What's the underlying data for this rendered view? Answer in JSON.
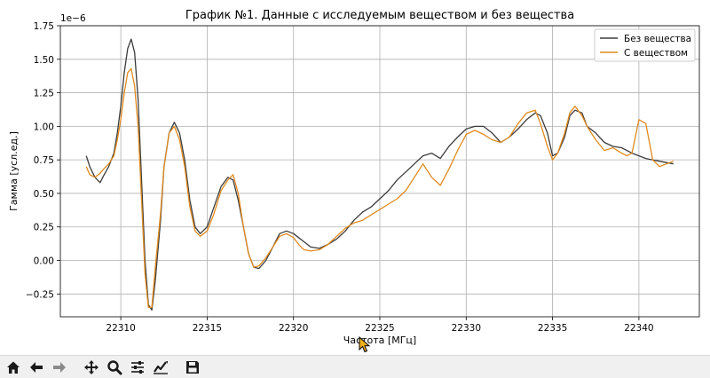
{
  "chart_data": {
    "type": "line",
    "title": "График №1. Данные с исследуемым веществом и без вещества",
    "xlabel": "Частота [МГц]",
    "ylabel": "Гамма [усл.ед.]",
    "offset_label": "1e−6",
    "xlim": [
      22306.5,
      22343.5
    ],
    "ylim": [
      -0.42,
      1.75
    ],
    "xticks": [
      22310,
      22315,
      22320,
      22325,
      22330,
      22335,
      22340
    ],
    "xtick_labels": [
      "22310",
      "22315",
      "22320",
      "22325",
      "22330",
      "22335",
      "22340"
    ],
    "yticks": [
      -0.25,
      0.0,
      0.25,
      0.5,
      0.75,
      1.0,
      1.25,
      1.5,
      1.75
    ],
    "ytick_labels": [
      "−0.25",
      "0.00",
      "0.25",
      "0.50",
      "0.75",
      "1.00",
      "1.25",
      "1.50",
      "1.75"
    ],
    "grid": true,
    "legend_position": "top-right",
    "series": [
      {
        "name": "Без вещества",
        "color": "#3c3c3c",
        "x": [
          22308.0,
          22308.2,
          22308.5,
          22308.8,
          22309.0,
          22309.3,
          22309.6,
          22309.8,
          22310.0,
          22310.2,
          22310.4,
          22310.6,
          22310.8,
          22311.0,
          22311.2,
          22311.4,
          22311.6,
          22311.8,
          22312.0,
          22312.3,
          22312.5,
          22312.8,
          22313.1,
          22313.4,
          22313.7,
          22314.0,
          22314.3,
          22314.6,
          22315.0,
          22315.4,
          22315.8,
          22316.2,
          22316.5,
          22316.8,
          22317.1,
          22317.4,
          22317.7,
          22318.0,
          22318.4,
          22318.8,
          22319.2,
          22319.6,
          22320.0,
          22320.3,
          22320.6,
          22321.0,
          22321.5,
          22322.0,
          22322.5,
          22323.0,
          22323.5,
          22324.0,
          22324.5,
          22325.0,
          22325.5,
          22326.0,
          22326.5,
          22327.0,
          22327.5,
          22328.0,
          22328.5,
          22329.0,
          22329.5,
          22330.0,
          22330.5,
          22331.0,
          22331.5,
          22332.0,
          22332.5,
          22333.0,
          22333.5,
          22334.0,
          22334.3,
          22334.7,
          22335.0,
          22335.3,
          22335.7,
          22336.0,
          22336.3,
          22336.7,
          22337.0,
          22337.5,
          22338.0,
          22338.5,
          22339.0,
          22339.3,
          22339.6,
          22340.0,
          22340.4,
          22340.8,
          22341.2,
          22341.6,
          22342.0
        ],
        "y": [
          0.78,
          0.7,
          0.62,
          0.58,
          0.63,
          0.7,
          0.8,
          0.95,
          1.15,
          1.4,
          1.58,
          1.65,
          1.55,
          1.2,
          0.6,
          0.0,
          -0.33,
          -0.37,
          -0.15,
          0.3,
          0.7,
          0.95,
          1.03,
          0.95,
          0.75,
          0.45,
          0.25,
          0.2,
          0.25,
          0.4,
          0.55,
          0.62,
          0.6,
          0.45,
          0.25,
          0.05,
          -0.05,
          -0.06,
          0.0,
          0.1,
          0.2,
          0.22,
          0.2,
          0.17,
          0.14,
          0.1,
          0.09,
          0.12,
          0.16,
          0.22,
          0.3,
          0.36,
          0.4,
          0.46,
          0.52,
          0.6,
          0.66,
          0.72,
          0.78,
          0.8,
          0.76,
          0.85,
          0.92,
          0.98,
          1.0,
          1.0,
          0.95,
          0.88,
          0.92,
          0.98,
          1.05,
          1.1,
          1.08,
          0.95,
          0.78,
          0.8,
          0.92,
          1.08,
          1.12,
          1.1,
          1.0,
          0.95,
          0.88,
          0.85,
          0.84,
          0.82,
          0.8,
          0.78,
          0.76,
          0.75,
          0.74,
          0.73,
          0.72
        ]
      },
      {
        "name": "С веществом",
        "color": "#e08a1e",
        "x": [
          22308.0,
          22308.2,
          22308.5,
          22308.8,
          22309.0,
          22309.3,
          22309.6,
          22309.8,
          22310.0,
          22310.2,
          22310.4,
          22310.6,
          22310.8,
          22311.0,
          22311.2,
          22311.4,
          22311.6,
          22311.8,
          22312.0,
          22312.3,
          22312.5,
          22312.8,
          22313.1,
          22313.4,
          22313.7,
          22314.0,
          22314.3,
          22314.6,
          22315.0,
          22315.4,
          22315.8,
          22316.2,
          22316.5,
          22316.8,
          22317.1,
          22317.4,
          22317.7,
          22318.0,
          22318.4,
          22318.8,
          22319.2,
          22319.6,
          22320.0,
          22320.3,
          22320.6,
          22321.0,
          22321.5,
          22322.0,
          22322.5,
          22323.0,
          22323.5,
          22324.0,
          22324.5,
          22325.0,
          22325.5,
          22326.0,
          22326.5,
          22327.0,
          22327.5,
          22328.0,
          22328.5,
          22329.0,
          22329.5,
          22330.0,
          22330.5,
          22331.0,
          22331.5,
          22332.0,
          22332.5,
          22333.0,
          22333.5,
          22334.0,
          22334.3,
          22334.7,
          22335.0,
          22335.3,
          22335.7,
          22336.0,
          22336.3,
          22336.7,
          22337.0,
          22337.5,
          22338.0,
          22338.5,
          22339.0,
          22339.3,
          22339.6,
          22340.0,
          22340.4,
          22340.8,
          22341.2,
          22341.6,
          22342.0
        ],
        "y": [
          0.7,
          0.64,
          0.62,
          0.65,
          0.68,
          0.72,
          0.78,
          0.9,
          1.05,
          1.25,
          1.4,
          1.43,
          1.3,
          1.0,
          0.45,
          -0.1,
          -0.35,
          -0.35,
          -0.05,
          0.35,
          0.7,
          0.95,
          1.0,
          0.9,
          0.7,
          0.4,
          0.22,
          0.18,
          0.22,
          0.35,
          0.52,
          0.6,
          0.64,
          0.5,
          0.25,
          0.05,
          -0.05,
          -0.04,
          0.02,
          0.1,
          0.18,
          0.2,
          0.17,
          0.12,
          0.08,
          0.07,
          0.08,
          0.12,
          0.18,
          0.24,
          0.28,
          0.3,
          0.34,
          0.38,
          0.42,
          0.46,
          0.52,
          0.62,
          0.72,
          0.62,
          0.56,
          0.68,
          0.82,
          0.94,
          0.97,
          0.94,
          0.9,
          0.88,
          0.92,
          1.02,
          1.1,
          1.12,
          1.02,
          0.85,
          0.75,
          0.8,
          0.95,
          1.1,
          1.15,
          1.08,
          1.0,
          0.9,
          0.82,
          0.84,
          0.8,
          0.78,
          0.8,
          1.05,
          1.02,
          0.75,
          0.7,
          0.72,
          0.74
        ]
      }
    ]
  },
  "toolbar": {
    "buttons": [
      {
        "name": "home-button",
        "icon": "home-icon"
      },
      {
        "name": "back-button",
        "icon": "arrow-left-icon"
      },
      {
        "name": "forward-button",
        "icon": "arrow-right-icon"
      },
      {
        "name": "pan-button",
        "icon": "move-icon"
      },
      {
        "name": "zoom-button",
        "icon": "magnifier-icon"
      },
      {
        "name": "configure-subplots-button",
        "icon": "sliders-icon"
      },
      {
        "name": "edit-axis-button",
        "icon": "line-chart-icon"
      },
      {
        "name": "save-button",
        "icon": "floppy-disk-icon"
      }
    ]
  }
}
